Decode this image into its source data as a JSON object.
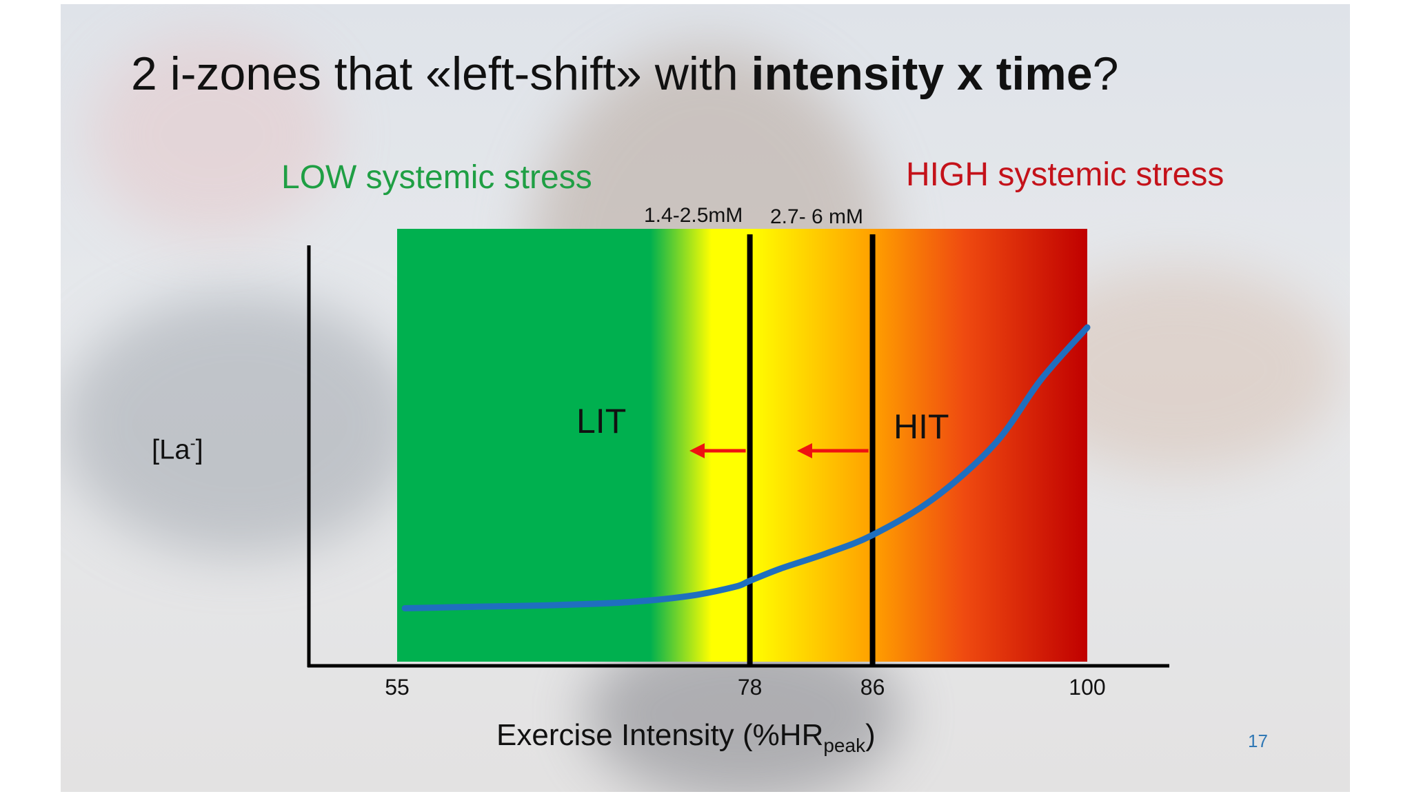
{
  "slide": {
    "title_prefix": "2 i-zones that «left-shift» with ",
    "title_bold": "intensity x time",
    "title_suffix": "?",
    "page_number": "17"
  },
  "headers": {
    "low": "LOW systemic stress",
    "high": "HIGH systemic stress",
    "low_color": "#1f9f44",
    "high_color": "#c4121a"
  },
  "thresholds": [
    {
      "x": 78,
      "label": "1.4-2.5mM"
    },
    {
      "x": 86,
      "label": "2.7- 6 mM"
    }
  ],
  "zones": {
    "lit": "LIT",
    "hit": "HIT"
  },
  "chart_data": {
    "type": "line",
    "ylabel_main": "[La",
    "ylabel_sup": "-",
    "ylabel_end": "]",
    "xlabel_main": "Exercise Intensity (%HR",
    "xlabel_sub": "peak",
    "xlabel_end": ")",
    "xticks": [
      55,
      78,
      86,
      100
    ],
    "xlim": [
      55,
      100
    ],
    "series": [
      {
        "color": "#1f6fbf",
        "x": [
          55.5,
          60,
          65,
          70,
          74,
          77,
          78,
          80,
          83,
          86,
          90,
          94,
          97,
          100
        ],
        "y": [
          0.08,
          0.085,
          0.09,
          0.1,
          0.12,
          0.15,
          0.17,
          0.21,
          0.26,
          0.32,
          0.44,
          0.62,
          0.83,
          1.0
        ]
      }
    ],
    "background_gradient": [
      {
        "x": 55,
        "color": "#00b04f"
      },
      {
        "x": 71.5,
        "color": "#00b04f"
      },
      {
        "x": 75.5,
        "color": "#ffff00"
      },
      {
        "x": 78,
        "color": "#ffff00"
      },
      {
        "x": 86,
        "color": "#ffa000"
      },
      {
        "x": 92,
        "color": "#ef4a10"
      },
      {
        "x": 100,
        "color": "#c00000"
      }
    ],
    "arrow_color": "#ee1111"
  }
}
